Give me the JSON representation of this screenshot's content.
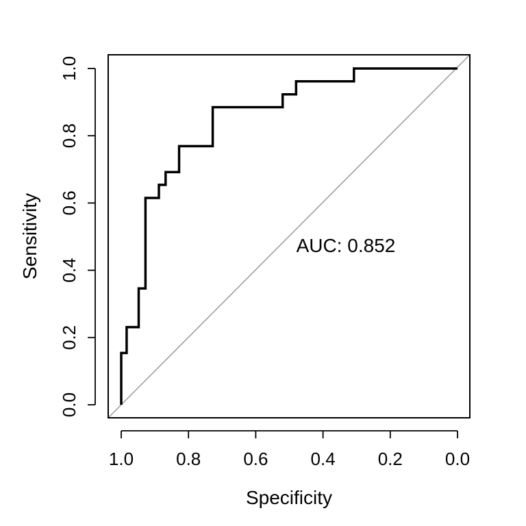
{
  "chart_data": {
    "type": "line",
    "title": "",
    "xlabel": "Specificity",
    "ylabel": "Sensitivity",
    "xlim": [
      1.0,
      0.0
    ],
    "ylim": [
      0.0,
      1.0
    ],
    "x_axis_reversed": true,
    "x_ticks": [
      "1.0",
      "0.8",
      "0.6",
      "0.4",
      "0.2",
      "0.0"
    ],
    "y_ticks": [
      "0.0",
      "0.2",
      "0.4",
      "0.6",
      "0.8",
      "1.0"
    ],
    "grid": false,
    "legend": "none",
    "annotation": "AUC: 0.852",
    "series": [
      {
        "color": "#000000",
        "x": [
          1.0,
          1.0,
          0.984,
          0.984,
          0.948,
          0.948,
          0.928,
          0.928,
          0.888,
          0.888,
          0.868,
          0.868,
          0.828,
          0.828,
          0.728,
          0.728,
          0.52,
          0.52,
          0.48,
          0.48,
          0.308,
          0.308,
          0.0
        ],
        "y": [
          0.0,
          0.154,
          0.154,
          0.231,
          0.231,
          0.346,
          0.346,
          0.615,
          0.615,
          0.654,
          0.654,
          0.692,
          0.692,
          0.769,
          0.769,
          0.885,
          0.885,
          0.923,
          0.923,
          0.962,
          0.962,
          1.0,
          1.0
        ]
      }
    ],
    "reference_line": {
      "x": [
        1.0,
        0.0
      ],
      "y": [
        0.0,
        1.0
      ],
      "color": "#999999"
    }
  }
}
